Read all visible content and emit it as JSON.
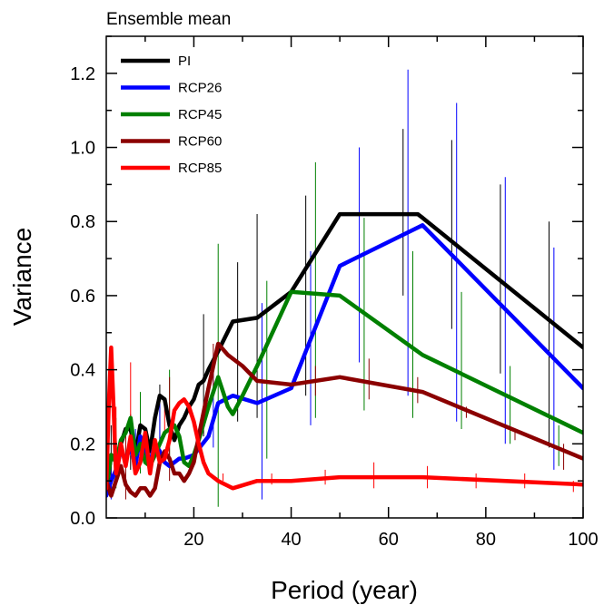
{
  "chart_data": {
    "type": "line",
    "title": "Ensemble mean",
    "xlabel": "Period (year)",
    "ylabel": "Variance",
    "xlim": [
      2,
      100
    ],
    "ylim": [
      0,
      1.3
    ],
    "xticks": [
      20,
      40,
      60,
      80,
      100
    ],
    "yticks": [
      0.0,
      0.2,
      0.4,
      0.6,
      0.8,
      1.0,
      1.2
    ],
    "grid": false,
    "legend_position": "top-left",
    "series": [
      {
        "name": "PI",
        "color": "#000000",
        "x": [
          2,
          3,
          4,
          5,
          6,
          7,
          8,
          9,
          10,
          11,
          12,
          13,
          14,
          15,
          16,
          17,
          18,
          19,
          20,
          21,
          22,
          23,
          25,
          28,
          33,
          40,
          50,
          60,
          66,
          67,
          100
        ],
        "y": [
          0.07,
          0.17,
          0.16,
          0.2,
          0.24,
          0.24,
          0.17,
          0.25,
          0.24,
          0.18,
          0.27,
          0.33,
          0.32,
          0.25,
          0.21,
          0.25,
          0.27,
          0.3,
          0.32,
          0.36,
          0.37,
          0.4,
          0.45,
          0.53,
          0.54,
          0.61,
          0.82,
          0.82,
          0.82,
          0.81,
          0.46
        ],
        "error_x": [
          3,
          7,
          13,
          22,
          29,
          33,
          43,
          63,
          73,
          83,
          93
        ],
        "error_low": [
          0.07,
          0.13,
          0.16,
          0.22,
          0.26,
          0.27,
          0.33,
          0.6,
          0.51,
          0.39,
          0.19
        ],
        "error_high": [
          0.25,
          0.28,
          0.36,
          0.55,
          0.69,
          0.82,
          0.87,
          1.05,
          1.02,
          0.9,
          0.8
        ]
      },
      {
        "name": "RCP26",
        "color": "#0000ff",
        "x": [
          2,
          3,
          4,
          5,
          6,
          7,
          8,
          9,
          10,
          11,
          12,
          13,
          14,
          15,
          17,
          18,
          20,
          23,
          25,
          28,
          33,
          40,
          50,
          67,
          100
        ],
        "y": [
          0.06,
          0.1,
          0.13,
          0.18,
          0.16,
          0.19,
          0.14,
          0.22,
          0.18,
          0.15,
          0.2,
          0.18,
          0.15,
          0.14,
          0.16,
          0.16,
          0.17,
          0.22,
          0.31,
          0.33,
          0.31,
          0.35,
          0.68,
          0.79,
          0.35
        ],
        "error_x": [
          3,
          8,
          13,
          24,
          34,
          44,
          54,
          64,
          74,
          84,
          94
        ],
        "error_low": [
          0.05,
          0.12,
          0.13,
          0.19,
          0.05,
          0.25,
          0.42,
          0.33,
          0.26,
          0.2,
          0.13
        ],
        "error_high": [
          0.16,
          0.24,
          0.32,
          0.44,
          0.58,
          0.72,
          1.0,
          1.21,
          1.12,
          0.92,
          0.73
        ]
      },
      {
        "name": "RCP45",
        "color": "#008000",
        "x": [
          2,
          3,
          4,
          5,
          6,
          7,
          8,
          9,
          10,
          11,
          12,
          13,
          14,
          15,
          16,
          17,
          18,
          19,
          20,
          21,
          23,
          25,
          26,
          27,
          28,
          30,
          33,
          40,
          50,
          67,
          100
        ],
        "y": [
          0.08,
          0.17,
          0.15,
          0.21,
          0.23,
          0.27,
          0.17,
          0.2,
          0.15,
          0.14,
          0.17,
          0.2,
          0.23,
          0.24,
          0.25,
          0.22,
          0.15,
          0.14,
          0.17,
          0.21,
          0.3,
          0.38,
          0.34,
          0.3,
          0.28,
          0.33,
          0.41,
          0.61,
          0.6,
          0.44,
          0.23
        ],
        "error_x": [
          4,
          9,
          15,
          25,
          35,
          45,
          55,
          65,
          75,
          85,
          95
        ],
        "error_low": [
          0.08,
          0.12,
          0.14,
          0.03,
          0.16,
          0.27,
          0.29,
          0.27,
          0.24,
          0.2,
          0.14
        ],
        "error_high": [
          0.27,
          0.34,
          0.4,
          0.74,
          0.64,
          0.96,
          0.81,
          0.72,
          0.61,
          0.41,
          0.25
        ]
      },
      {
        "name": "RCP60",
        "color": "#8b0000",
        "x": [
          2,
          3,
          4,
          5,
          6,
          7,
          8,
          9,
          10,
          11,
          12,
          13,
          14,
          15,
          16,
          17,
          18,
          19,
          20,
          21,
          23,
          25,
          27,
          30,
          33,
          40,
          50,
          67,
          100
        ],
        "y": [
          0.1,
          0.06,
          0.1,
          0.14,
          0.09,
          0.07,
          0.06,
          0.08,
          0.08,
          0.06,
          0.08,
          0.15,
          0.18,
          0.16,
          0.12,
          0.12,
          0.1,
          0.12,
          0.15,
          0.22,
          0.35,
          0.47,
          0.44,
          0.41,
          0.37,
          0.36,
          0.38,
          0.34,
          0.16
        ],
        "error_x": [
          2,
          6,
          15,
          24,
          45,
          56,
          66,
          76,
          86,
          96
        ],
        "error_low": [
          0.04,
          0.05,
          0.1,
          0.33,
          0.33,
          0.32,
          0.31,
          0.27,
          0.21,
          0.13
        ],
        "error_high": [
          0.21,
          0.24,
          0.38,
          0.47,
          0.41,
          0.43,
          0.38,
          0.3,
          0.24,
          0.2
        ]
      },
      {
        "name": "RCP85",
        "color": "#ff0000",
        "x": [
          2,
          2.5,
          3,
          3.5,
          4,
          4.5,
          5,
          6,
          7,
          8,
          9,
          10,
          11,
          12,
          13,
          14,
          15,
          16,
          17,
          18,
          19,
          20,
          21,
          22,
          23,
          25,
          28,
          33,
          40,
          50,
          67,
          100
        ],
        "y": [
          0.08,
          0.3,
          0.46,
          0.3,
          0.12,
          0.15,
          0.2,
          0.14,
          0.22,
          0.12,
          0.15,
          0.23,
          0.12,
          0.21,
          0.15,
          0.16,
          0.21,
          0.29,
          0.31,
          0.32,
          0.3,
          0.26,
          0.2,
          0.15,
          0.12,
          0.1,
          0.08,
          0.1,
          0.1,
          0.11,
          0.11,
          0.09
        ],
        "error_x": [
          4,
          7,
          14,
          26,
          36,
          47,
          57,
          68,
          78,
          88,
          98
        ],
        "error_low": [
          0.14,
          0.2,
          0.22,
          0.1,
          0.09,
          0.09,
          0.08,
          0.08,
          0.08,
          0.08,
          0.07
        ],
        "error_high": [
          0.3,
          0.42,
          0.3,
          0.12,
          0.12,
          0.13,
          0.15,
          0.14,
          0.12,
          0.12,
          0.1
        ]
      }
    ]
  }
}
